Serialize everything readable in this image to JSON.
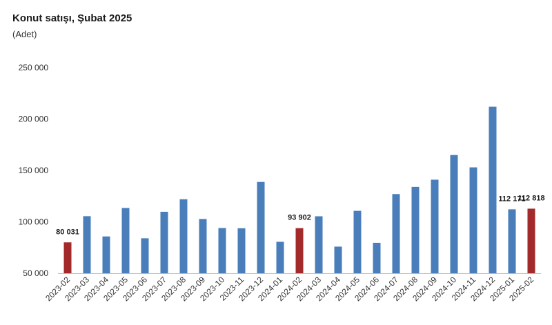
{
  "chart_data": {
    "type": "bar",
    "title": "Konut satışı, Şubat 2025",
    "subtitle": "(Adet)",
    "xlabel": "",
    "ylabel": "",
    "ylim": [
      50000,
      250000
    ],
    "y_ticks": [
      50000,
      100000,
      150000,
      200000,
      250000
    ],
    "y_tick_labels": [
      "50 000",
      "100 000",
      "150 000",
      "200 000",
      "250 000"
    ],
    "grid": false,
    "legend": "none",
    "colors": {
      "default": "#4a7ebb",
      "highlight": "#a32a2a",
      "axis": "#bfbfbf"
    },
    "categories": [
      "2023-02",
      "2023-03",
      "2023-04",
      "2023-05",
      "2023-06",
      "2023-07",
      "2023-08",
      "2023-09",
      "2023-10",
      "2023-11",
      "2023-12",
      "2024-01",
      "2024-02",
      "2024-03",
      "2024-04",
      "2024-05",
      "2024-06",
      "2024-07",
      "2024-08",
      "2024-09",
      "2024-10",
      "2024-11",
      "2024-12",
      "2025-01",
      "2025-02"
    ],
    "values": [
      80031,
      105500,
      85800,
      113500,
      84000,
      109800,
      122000,
      102800,
      94000,
      93800,
      138800,
      80600,
      93902,
      105400,
      75900,
      110700,
      79600,
      127000,
      134000,
      141000,
      165000,
      153000,
      212000,
      112171,
      112818
    ],
    "highlighted": [
      0,
      12,
      24
    ],
    "data_labels": [
      {
        "index": 0,
        "text": "80 031"
      },
      {
        "index": 12,
        "text": "93 902"
      },
      {
        "index": 23,
        "text": "112 171"
      },
      {
        "index": 24,
        "text": "112 818"
      }
    ]
  }
}
